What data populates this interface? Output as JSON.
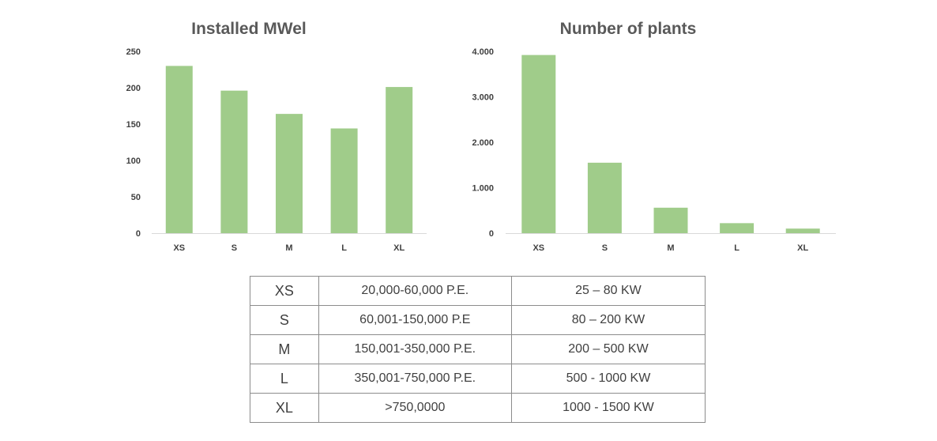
{
  "chart_data": [
    {
      "type": "bar",
      "title": "Installed MWel",
      "categories": [
        "XS",
        "S",
        "M",
        "L",
        "XL"
      ],
      "values": [
        230,
        196,
        164,
        144,
        201
      ],
      "ylim": [
        0,
        250
      ],
      "yticks": [
        0,
        50,
        100,
        150,
        200,
        250
      ],
      "ytick_labels": [
        "0",
        "50",
        "100",
        "150",
        "200",
        "250"
      ],
      "color": "#a0cc8a",
      "grid": false
    },
    {
      "type": "bar",
      "title": "Number of plants",
      "categories": [
        "XS",
        "S",
        "M",
        "L",
        "XL"
      ],
      "values": [
        3920,
        1550,
        560,
        220,
        100
      ],
      "ylim": [
        0,
        4000
      ],
      "yticks": [
        0,
        1000,
        2000,
        3000,
        4000
      ],
      "ytick_labels": [
        "0",
        "1.000",
        "2.000",
        "3.000",
        "4.000"
      ],
      "color": "#a0cc8a",
      "grid": false
    }
  ],
  "table": {
    "rows": [
      [
        "XS",
        "20,000-60,000 P.E.",
        "25 – 80 KW"
      ],
      [
        "S",
        "60,001-150,000 P.E",
        "80 – 200 KW"
      ],
      [
        "M",
        "150,001-350,000 P.E.",
        "200 – 500 KW"
      ],
      [
        "L",
        "350,001-750,000 P.E.",
        "500 -  1000 KW"
      ],
      [
        "XL",
        ">750,0000",
        "1000 - 1500 KW"
      ]
    ]
  }
}
